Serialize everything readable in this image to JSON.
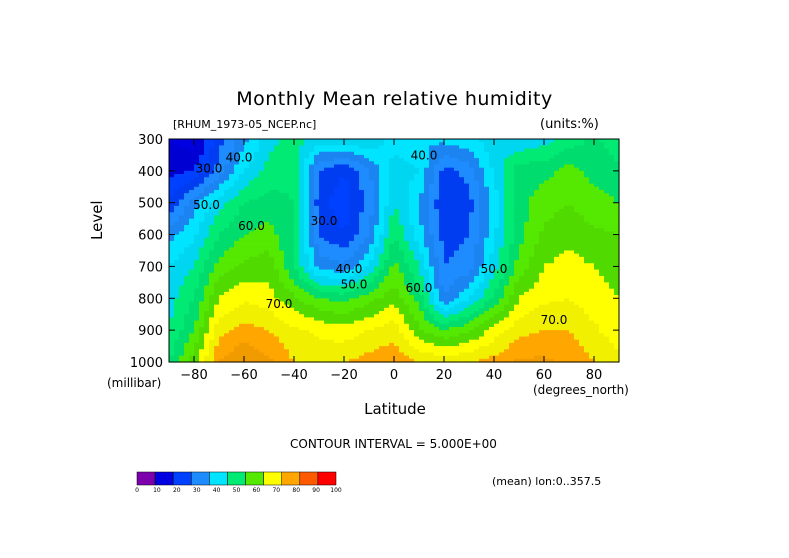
{
  "chart_data": {
    "type": "heatmap",
    "title": "Monthly Mean relative humidity",
    "dataset_label": "[RHUM_1973-05_NCEP.nc]",
    "units_label": "(units:%)",
    "xlabel": "Latitude",
    "x_units_label": "(degrees_north)",
    "ylabel": "Level",
    "y_units_label": "(millibar)",
    "xlim": [
      -90,
      90
    ],
    "ylim": [
      1000,
      300
    ],
    "x_ticks": [
      -80,
      -60,
      -40,
      -20,
      0,
      20,
      40,
      60,
      80
    ],
    "y_ticks": [
      300,
      400,
      500,
      600,
      700,
      800,
      900,
      1000
    ],
    "contour_interval_label": "CONTOUR INTERVAL = 5.000E+00",
    "mean_label": "(mean) lon:0..357.5",
    "colorbar": {
      "ticks": [
        0,
        10,
        20,
        30,
        40,
        50,
        60,
        70,
        80,
        90,
        100
      ],
      "colors": [
        "#7c00ac",
        "#0000e0",
        "#0040ff",
        "#1e8cff",
        "#00e4ff",
        "#00ea74",
        "#55e800",
        "#ffff00",
        "#ffa600",
        "#ff5a00",
        "#ff0000"
      ]
    },
    "contour_labels": [
      {
        "text": "30.0",
        "lat": -74,
        "lev": 405
      },
      {
        "text": "40.0",
        "lat": -62,
        "lev": 370
      },
      {
        "text": "50.0",
        "lat": -75,
        "lev": 520
      },
      {
        "text": "60.0",
        "lat": -57,
        "lev": 585
      },
      {
        "text": "70.0",
        "lat": -46,
        "lev": 830
      },
      {
        "text": "30.0",
        "lat": -28,
        "lev": 570
      },
      {
        "text": "40.0",
        "lat": -18,
        "lev": 720
      },
      {
        "text": "50.0",
        "lat": -16,
        "lev": 770
      },
      {
        "text": "40.0",
        "lat": 12,
        "lev": 365
      },
      {
        "text": "60.0",
        "lat": 10,
        "lev": 780
      },
      {
        "text": "50.0",
        "lat": 40,
        "lev": 720
      },
      {
        "text": "70.0",
        "lat": 64,
        "lev": 880
      }
    ],
    "rh_table": {
      "lats": [
        -90,
        -80,
        -70,
        -60,
        -50,
        -40,
        -30,
        -20,
        -10,
        0,
        10,
        20,
        30,
        40,
        50,
        60,
        70,
        80,
        90
      ],
      "levels": [
        300,
        400,
        500,
        600,
        700,
        800,
        900,
        1000
      ],
      "values": [
        [
          15,
          12,
          28,
          38,
          48,
          52,
          48,
          50,
          50,
          42,
          40,
          42,
          44,
          48,
          45,
          48,
          52,
          56,
          52
        ],
        [
          18,
          20,
          32,
          45,
          52,
          54,
          30,
          25,
          34,
          48,
          45,
          28,
          32,
          46,
          58,
          58,
          62,
          58,
          56
        ],
        [
          25,
          38,
          48,
          55,
          57,
          55,
          27,
          22,
          32,
          50,
          40,
          25,
          28,
          42,
          58,
          63,
          65,
          62,
          60
        ],
        [
          38,
          44,
          55,
          60,
          62,
          55,
          30,
          25,
          35,
          55,
          42,
          28,
          30,
          44,
          58,
          66,
          68,
          66,
          65
        ],
        [
          45,
          50,
          62,
          66,
          68,
          55,
          38,
          36,
          45,
          62,
          50,
          30,
          32,
          48,
          62,
          70,
          72,
          70,
          68
        ],
        [
          48,
          55,
          70,
          74,
          72,
          66,
          60,
          58,
          63,
          68,
          58,
          35,
          45,
          56,
          70,
          74,
          75,
          72,
          70
        ],
        [
          50,
          60,
          78,
          82,
          80,
          76,
          74,
          72,
          75,
          78,
          66,
          60,
          64,
          72,
          78,
          80,
          80,
          76,
          72
        ],
        [
          55,
          68,
          85,
          90,
          86,
          80,
          78,
          80,
          82,
          84,
          80,
          78,
          80,
          82,
          86,
          86,
          84,
          80,
          76
        ]
      ]
    }
  }
}
